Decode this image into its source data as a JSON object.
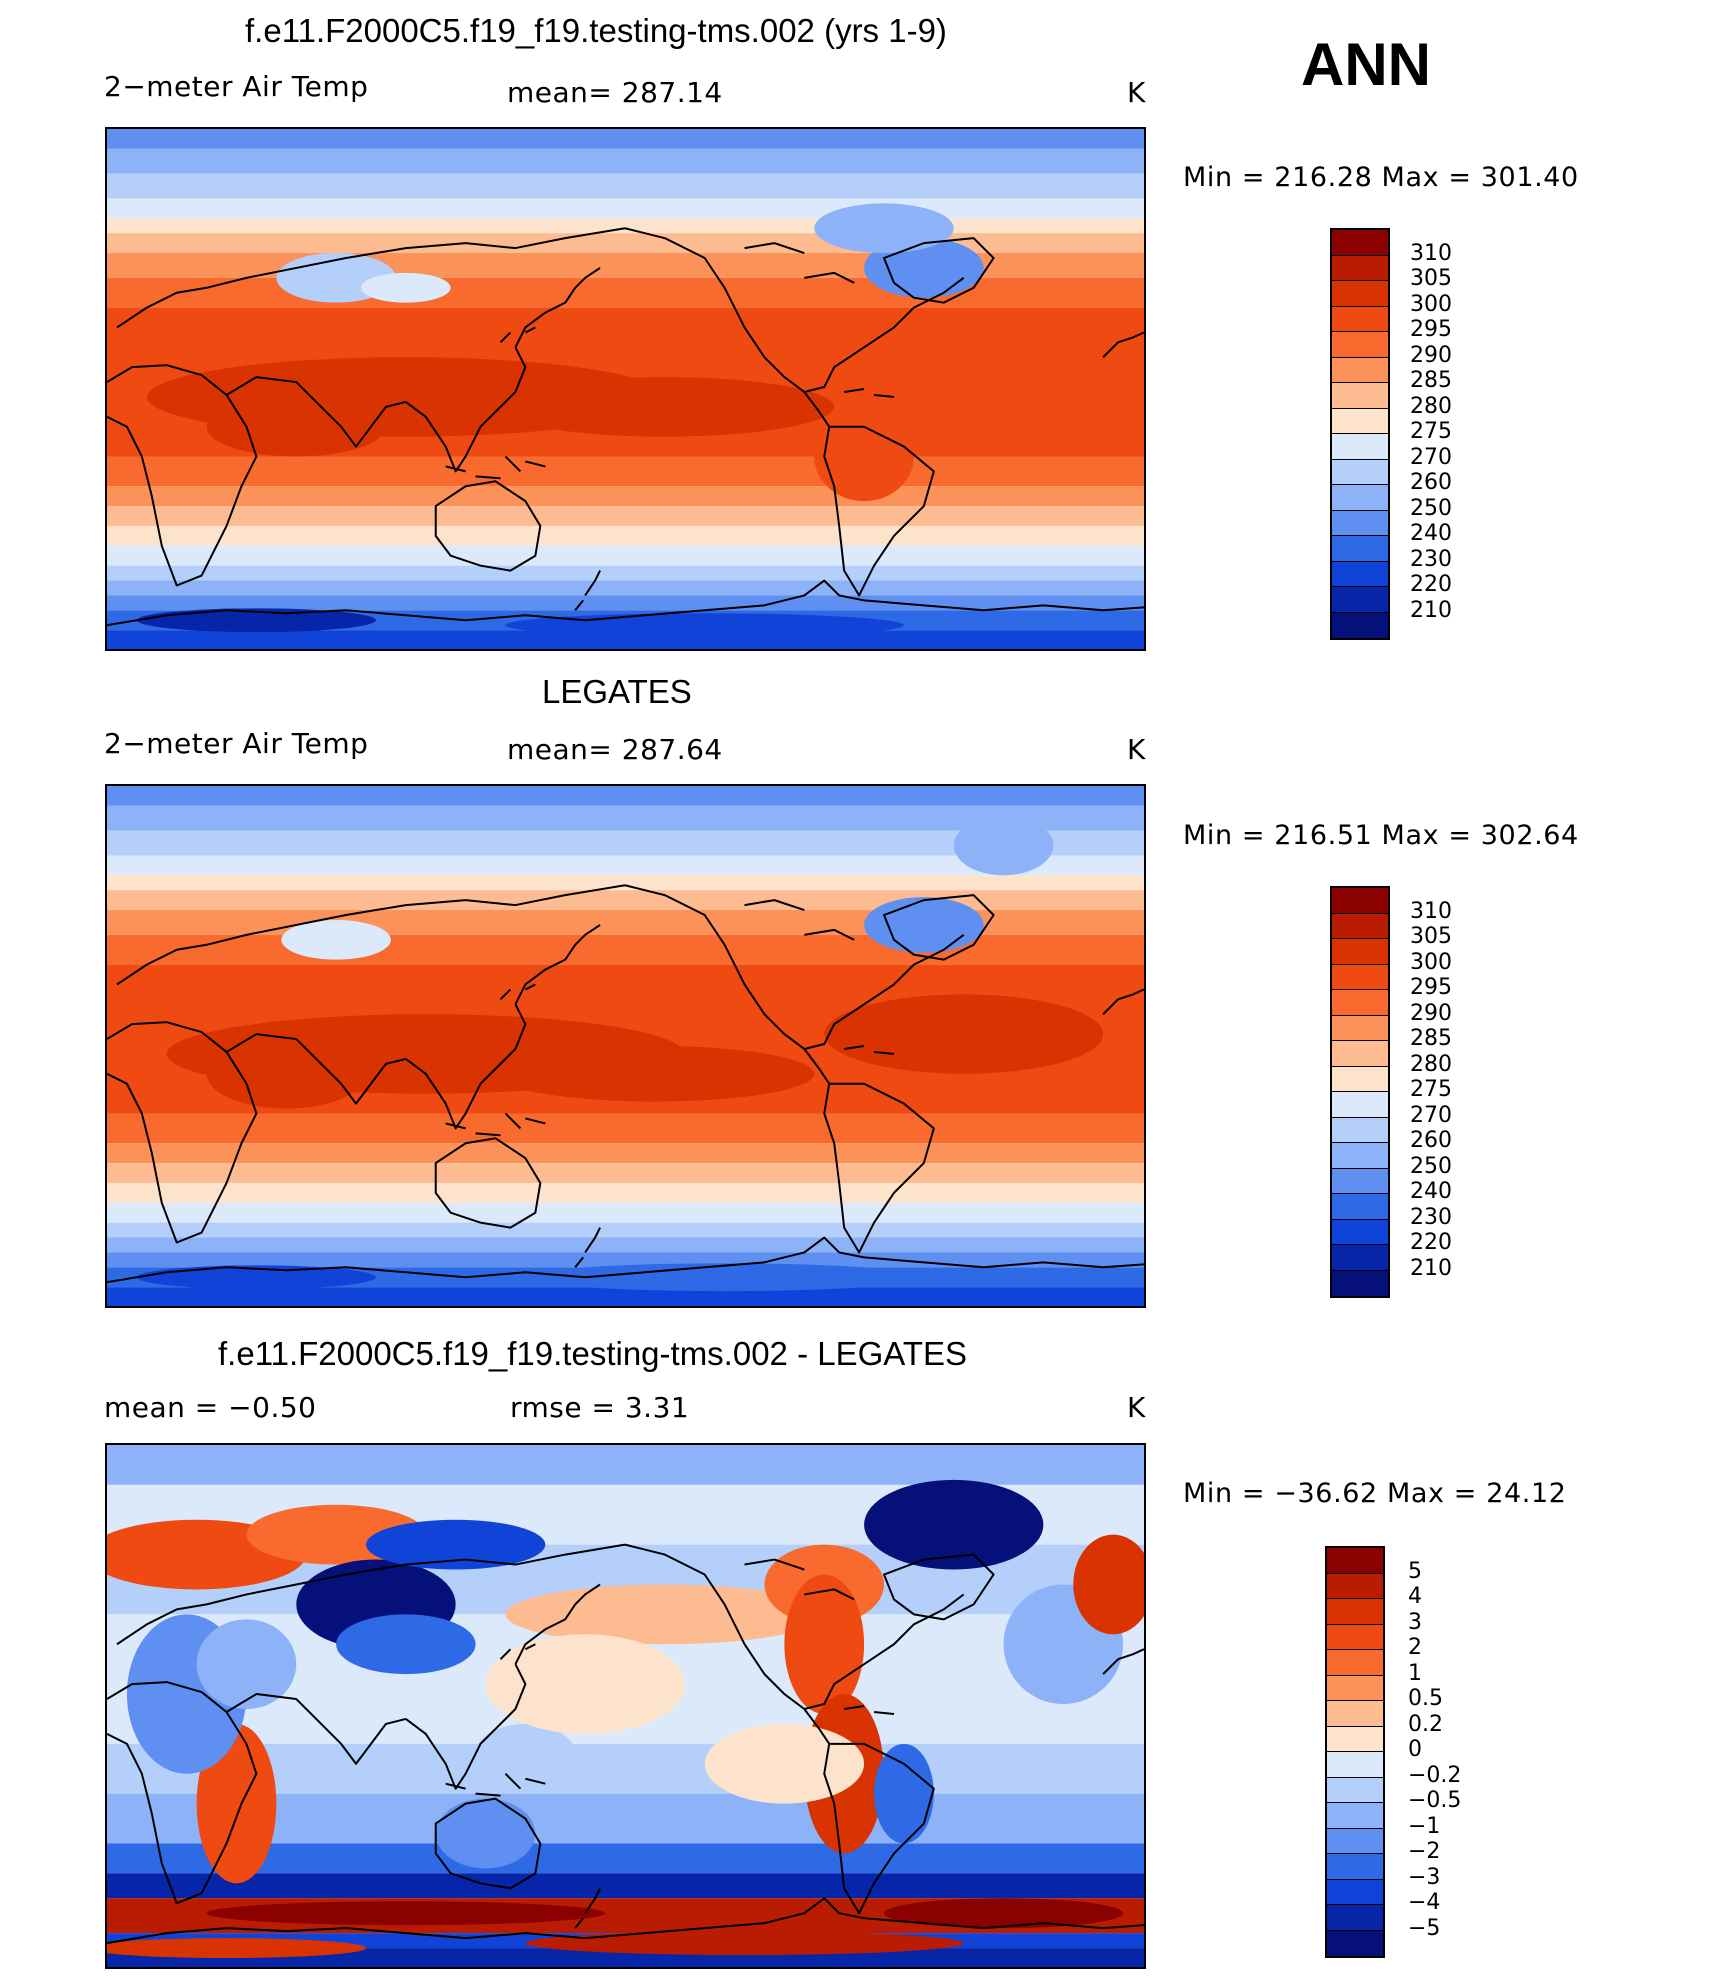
{
  "season": "ANN",
  "panels": [
    {
      "title": "f.e11.F2000C5.f19_f19.testing-tms.002 (yrs 1-9)",
      "left_label": "2−meter Air Temp",
      "center_label": "mean=  287.14",
      "unit": "K",
      "minmax": "Min  =  216.28  Max  =  301.40",
      "colorbar_labels": [
        "310",
        "305",
        "300",
        "295",
        "290",
        "285",
        "280",
        "275",
        "270",
        "260",
        "250",
        "240",
        "230",
        "220",
        "210"
      ],
      "colors": [
        "#8b0000",
        "#b91c00",
        "#d83300",
        "#ee4a12",
        "#f86a2e",
        "#fb9259",
        "#fdbb92",
        "#fde3cc",
        "#dbe9fb",
        "#b4cffa",
        "#8eb2f7",
        "#5f8ff0",
        "#2f6ae6",
        "#1044d8",
        "#0625a8",
        "#06107a"
      ]
    },
    {
      "title": "LEGATES",
      "left_label": "2−meter Air Temp",
      "center_label": "mean=  287.64",
      "unit": "K",
      "minmax": "Min  =  216.51  Max  =  302.64",
      "colorbar_labels": [
        "310",
        "305",
        "300",
        "295",
        "290",
        "285",
        "280",
        "275",
        "270",
        "260",
        "250",
        "240",
        "230",
        "220",
        "210"
      ],
      "colors": [
        "#8b0000",
        "#b91c00",
        "#d83300",
        "#ee4a12",
        "#f86a2e",
        "#fb9259",
        "#fdbb92",
        "#fde3cc",
        "#dbe9fb",
        "#b4cffa",
        "#8eb2f7",
        "#5f8ff0",
        "#2f6ae6",
        "#1044d8",
        "#0625a8",
        "#06107a"
      ]
    },
    {
      "title": "f.e11.F2000C5.f19_f19.testing-tms.002 - LEGATES",
      "left_label": "mean  =    −0.50",
      "center_label": "rmse  =     3.31",
      "unit": "K",
      "minmax": "Min  =  −36.62  Max  =    24.12",
      "colorbar_labels": [
        "5",
        "4",
        "3",
        "2",
        "1",
        "0.5",
        "0.2",
        "0",
        "−0.2",
        "−0.5",
        "−1",
        "−2",
        "−3",
        "−4",
        "−5"
      ],
      "colors": [
        "#8b0000",
        "#b91c00",
        "#d83300",
        "#ee4a12",
        "#f86a2e",
        "#fb9259",
        "#fdbb92",
        "#fde3cc",
        "#dbe9fb",
        "#b4cffa",
        "#8eb2f7",
        "#5f8ff0",
        "#2f6ae6",
        "#1044d8",
        "#0625a8",
        "#06107a"
      ]
    }
  ]
}
